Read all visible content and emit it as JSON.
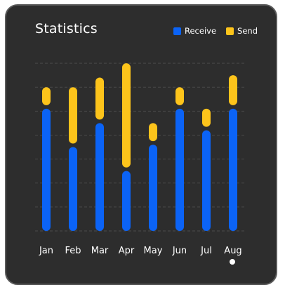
{
  "title": "Statistics",
  "legend": [
    {
      "label": "Receive",
      "color": "#0b63f6"
    },
    {
      "label": "Send",
      "color": "#fdc41b"
    }
  ],
  "colors": {
    "receive": "#0b63f6",
    "send": "#fdc41b",
    "card": "#2d2d2d",
    "grid": "#4a4a4a",
    "text": "#ffffff"
  },
  "chart_data": {
    "type": "bar",
    "stacked": true,
    "categories": [
      "Jan",
      "Feb",
      "Mar",
      "Apr",
      "May",
      "Jun",
      "Jul",
      "Aug"
    ],
    "series": [
      {
        "name": "Receive",
        "values": [
          51,
          35,
          45,
          25,
          36,
          51,
          42,
          51
        ]
      },
      {
        "name": "Send",
        "values": [
          9,
          25,
          19,
          45,
          9,
          9,
          9,
          14
        ]
      }
    ],
    "ylim": [
      0,
      75
    ],
    "grid": true,
    "legend": "top-right"
  }
}
